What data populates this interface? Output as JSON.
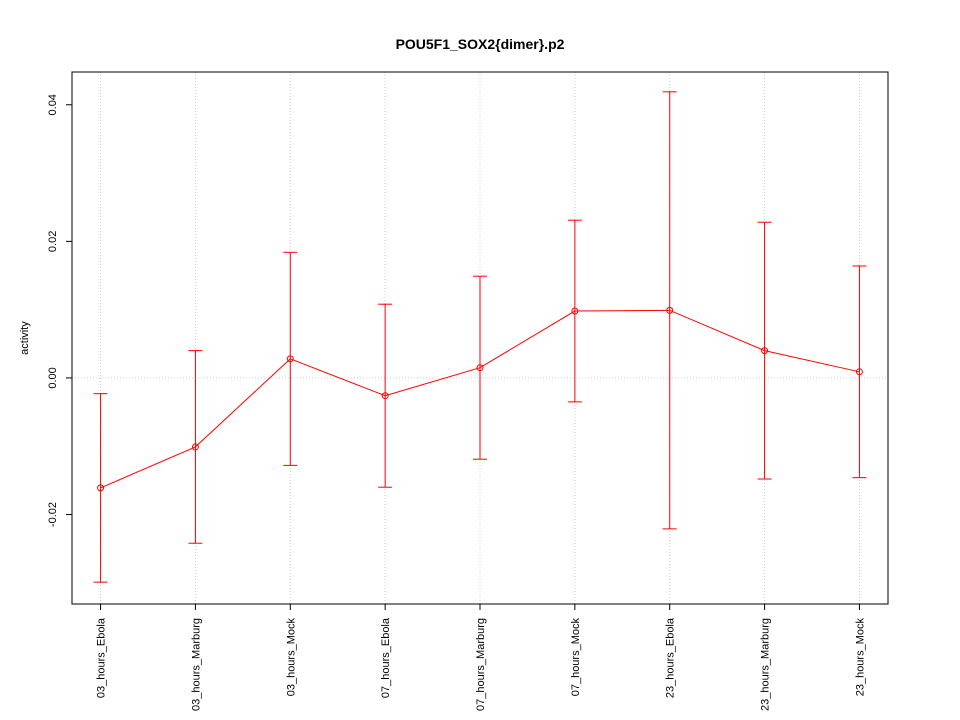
{
  "chart_data": {
    "type": "line",
    "title": "POU5F1_SOX2{dimer}.p2",
    "y_label": "activity",
    "categories": [
      "03_hours_Ebola",
      "03_hours_Marburg",
      "03_hours_Mock",
      "07_hours_Ebola",
      "07_hours_Marburg",
      "07_hours_Mock",
      "23_hours_Ebola",
      "23_hours_Marburg",
      "23_hours_Mock"
    ],
    "series": [
      {
        "name": "activity",
        "color": "#ff0000",
        "values": [
          -0.0161,
          -0.0101,
          0.0028,
          -0.0026,
          0.0015,
          0.0098,
          0.0099,
          0.004,
          0.0009
        ],
        "errors": [
          0.0138,
          0.0141,
          0.0156,
          0.0134,
          0.0134,
          0.0133,
          0.032,
          0.0188,
          0.0155
        ]
      }
    ],
    "ylim": [
      -0.0331,
      0.0448
    ],
    "yticks": [
      -0.02,
      {
        "value": 0,
        "label": "0.00"
      },
      0.02,
      0.04
    ],
    "grid": true
  }
}
